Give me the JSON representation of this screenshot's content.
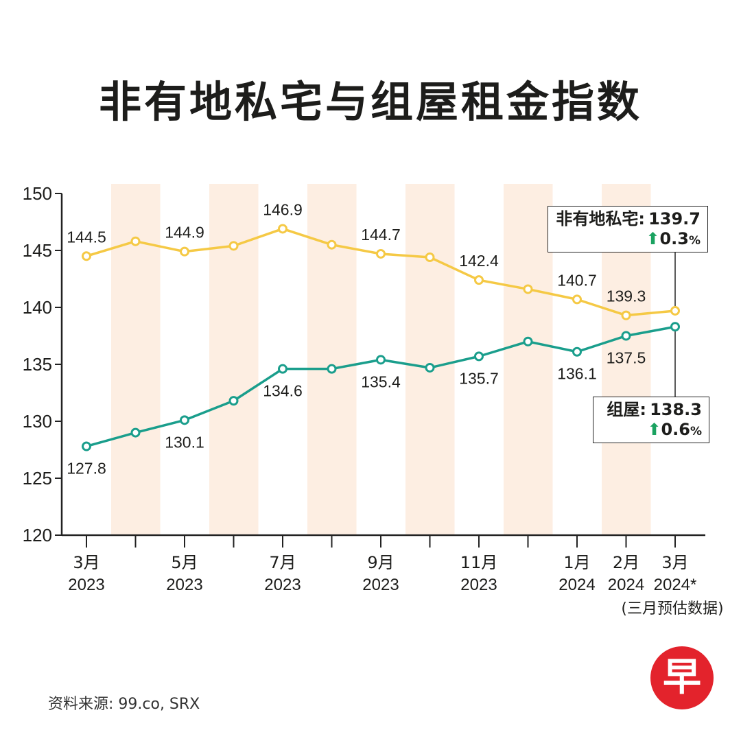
{
  "title": "非有地私宅与组屋租金指数",
  "source": "资料来源: 99.co, SRX",
  "logo_char": "早",
  "footnote": "(三月预估数据)",
  "colors": {
    "private_line": "#f5c945",
    "hdb_line": "#1a9e8c",
    "band": "#fdeee2",
    "arrow_up": "#1aa260"
  },
  "callouts": {
    "private": {
      "label": "非有地私宅:",
      "value": "139.7",
      "arrow": "⬆",
      "change": "0.3",
      "pct": "%"
    },
    "hdb": {
      "label": "组屋:",
      "value": "138.3",
      "arrow": "⬆",
      "change": "0.6",
      "pct": "%"
    }
  },
  "chart_data": {
    "type": "line",
    "title": "非有地私宅与组屋租金指数",
    "xlabel": "",
    "ylabel": "",
    "ylim": [
      120,
      150
    ],
    "y_ticks": [
      "150",
      "145",
      "140",
      "135",
      "130",
      "125",
      "120"
    ],
    "grid": false,
    "x_months": [
      "3月",
      "",
      "5月",
      "",
      "7月",
      "",
      "9月",
      "",
      "11月",
      "",
      "1月",
      "2月",
      "3月"
    ],
    "x_years": [
      "2023",
      "",
      "2023",
      "",
      "2023",
      "",
      "2023",
      "",
      "2023",
      "",
      "2024",
      "2024",
      "2024*"
    ],
    "series": [
      {
        "name": "非有地私宅",
        "values": [
          144.5,
          145.8,
          144.9,
          145.4,
          146.9,
          145.5,
          144.7,
          144.4,
          142.4,
          141.6,
          140.7,
          139.3,
          139.7
        ],
        "labels": [
          "144.5",
          "",
          "144.9",
          "",
          "146.9",
          "",
          "144.7",
          "",
          "142.4",
          "",
          "140.7",
          "139.3",
          ""
        ]
      },
      {
        "name": "组屋",
        "values": [
          127.8,
          129.0,
          130.1,
          131.8,
          134.6,
          134.6,
          135.4,
          134.7,
          135.7,
          137.0,
          136.1,
          137.5,
          138.3
        ],
        "labels": [
          "127.8",
          "",
          "130.1",
          "",
          "134.6",
          "",
          "135.4",
          "",
          "135.7",
          "",
          "136.1",
          "137.5",
          ""
        ]
      }
    ]
  }
}
